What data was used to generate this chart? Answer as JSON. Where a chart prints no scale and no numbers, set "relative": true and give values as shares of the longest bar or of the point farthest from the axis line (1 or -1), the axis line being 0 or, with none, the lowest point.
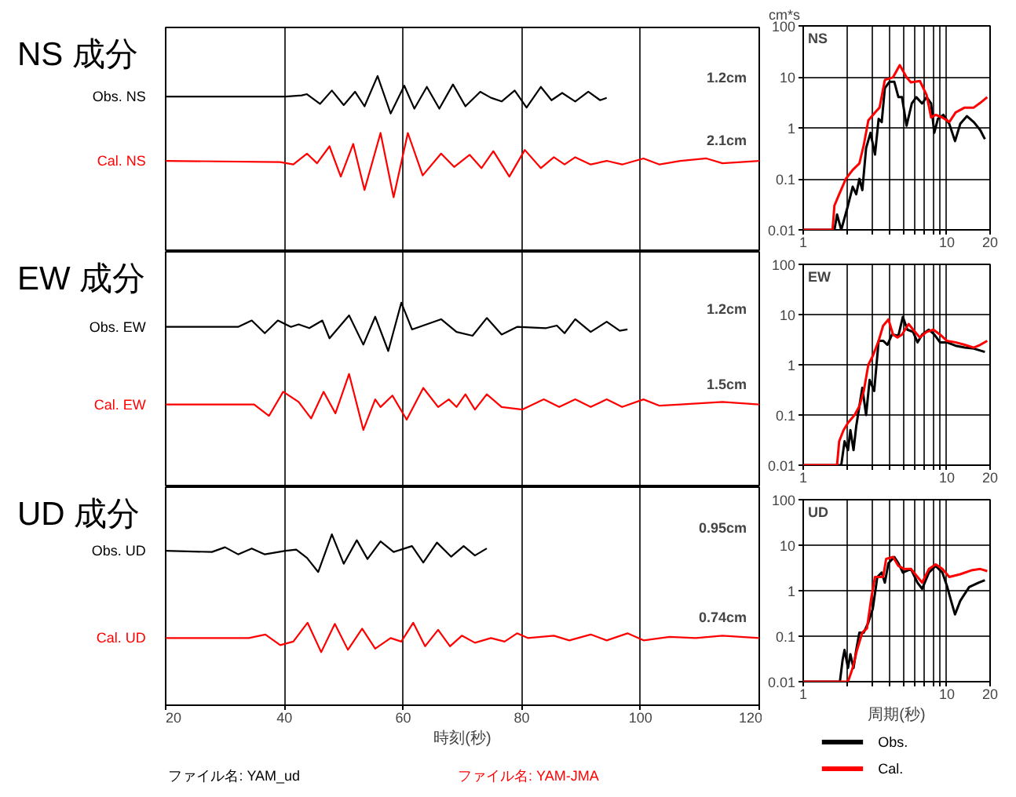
{
  "chart_data": [
    {
      "type": "line",
      "title": "NS 成分",
      "relative": true,
      "xlim": [
        20,
        120
      ],
      "xticks": [
        20,
        40,
        60,
        80,
        100,
        120
      ],
      "grid": "x",
      "tick_labels": false,
      "series": [
        {
          "name": "Obs. NS",
          "color": "#000000",
          "x": [
            20,
            31.3,
            40.2,
            42.9,
            43.8,
            46,
            48,
            50,
            51.9,
            53.5,
            55.7,
            57.9,
            60.2,
            61.9,
            64,
            66.1,
            68.4,
            70.5,
            73,
            74.8,
            76.6,
            78.8,
            80.8,
            83.2,
            85,
            86.8,
            89,
            91.2,
            93.2,
            94.3
          ],
          "values": [
            0.83,
            0.83,
            0.83,
            0.84,
            0.85,
            0.77,
            0.88,
            0.76,
            0.87,
            0.75,
            1,
            0.69,
            0.92,
            0.73,
            0.91,
            0.73,
            0.93,
            0.75,
            0.87,
            0.82,
            0.79,
            0.88,
            0.74,
            0.91,
            0.8,
            0.86,
            0.79,
            0.87,
            0.8,
            0.82
          ]
        },
        {
          "name": "Cal. NS",
          "color": "#ff0000",
          "x": [
            20,
            39.3,
            41.5,
            43.8,
            45.5,
            47.6,
            49.5,
            51.6,
            53.5,
            56.2,
            58.4,
            60.8,
            63.3,
            66.4,
            68.6,
            71.2,
            73.2,
            75.2,
            77.9,
            80.5,
            83.2,
            85.4,
            87.2,
            89,
            91.6,
            94.3,
            96.9,
            100.5,
            103.2,
            106.7,
            111.1,
            113.8,
            120
          ],
          "values": [
            0.3,
            0.29,
            0.27,
            0.36,
            0.28,
            0.42,
            0.17,
            0.44,
            0.06,
            0.53,
            0,
            0.53,
            0.18,
            0.36,
            0.25,
            0.35,
            0.24,
            0.38,
            0.17,
            0.39,
            0.24,
            0.33,
            0.27,
            0.33,
            0.27,
            0.3,
            0.27,
            0.32,
            0.27,
            0.3,
            0.32,
            0.28,
            0.3
          ]
        }
      ],
      "annotations": [
        "1.2cm",
        "2.1cm"
      ]
    },
    {
      "type": "line",
      "title": "EW 成分",
      "relative": true,
      "xlim": [
        20,
        120
      ],
      "xticks": [
        20,
        40,
        60,
        80,
        100,
        120
      ],
      "grid": "x",
      "tick_labels": false,
      "series": [
        {
          "name": "Obs. EW",
          "color": "#000000",
          "x": [
            20,
            32.2,
            34.5,
            36.7,
            38.9,
            41.1,
            42.4,
            44.2,
            46.4,
            47.6,
            50.9,
            53.3,
            55.3,
            57.5,
            59.7,
            61.5,
            66.4,
            69,
            71.7,
            74.1,
            76.6,
            79.2,
            84.1,
            85.9,
            87.2,
            89,
            91.6,
            94.3,
            96.5,
            97.8
          ],
          "values": [
            0.81,
            0.81,
            0.86,
            0.76,
            0.86,
            0.81,
            0.83,
            0.8,
            0.86,
            0.72,
            0.9,
            0.67,
            0.89,
            0.62,
            1,
            0.79,
            0.87,
            0.77,
            0.74,
            0.88,
            0.75,
            0.81,
            0.8,
            0.82,
            0.76,
            0.87,
            0.77,
            0.85,
            0.78,
            0.79
          ]
        },
        {
          "name": "Cal. EW",
          "color": "#ff0000",
          "x": [
            20,
            34.9,
            37.4,
            39.8,
            42.4,
            44.5,
            46.6,
            48.6,
            50.9,
            53.3,
            55.3,
            56.2,
            58.2,
            60.6,
            63.4,
            65.9,
            67.7,
            69,
            70.5,
            72.1,
            74.1,
            76.6,
            80.1,
            83.7,
            86.3,
            89,
            91.6,
            94.3,
            96.9,
            100.5,
            103.2,
            106.7,
            113.8,
            120
          ],
          "values": [
            0.2,
            0.2,
            0.11,
            0.3,
            0.22,
            0.09,
            0.3,
            0.13,
            0.44,
            0,
            0.24,
            0.18,
            0.27,
            0.08,
            0.33,
            0.18,
            0.24,
            0.18,
            0.28,
            0.16,
            0.28,
            0.18,
            0.16,
            0.24,
            0.18,
            0.24,
            0.18,
            0.24,
            0.18,
            0.24,
            0.19,
            0.2,
            0.22,
            0.2
          ]
        }
      ],
      "annotations": [
        "1.2cm",
        "1.5cm"
      ]
    },
    {
      "type": "line",
      "title": "UD 成分",
      "relative": true,
      "xlim": [
        20,
        120
      ],
      "xticks": [
        20,
        40,
        60,
        80,
        100,
        120
      ],
      "grid": "x",
      "tick_labels": "x",
      "xlabel": "時刻(秒)",
      "series": [
        {
          "name": "Obs. UD",
          "color": "#000000",
          "x": [
            20,
            27.8,
            30,
            32.2,
            34.5,
            36.7,
            40.2,
            42,
            43.8,
            45.7,
            48,
            50,
            52.2,
            54,
            56.2,
            58.4,
            61.5,
            63.4,
            65.7,
            68.1,
            70.2,
            72.1,
            74.1
          ],
          "values": [
            0.86,
            0.85,
            0.89,
            0.83,
            0.88,
            0.83,
            0.86,
            0.87,
            0.8,
            0.68,
            1,
            0.75,
            0.95,
            0.79,
            0.94,
            0.85,
            0.9,
            0.76,
            0.93,
            0.81,
            0.9,
            0.82,
            0.88
          ]
        },
        {
          "name": "Cal. UD",
          "color": "#ff0000",
          "x": [
            20,
            34,
            36.8,
            39.3,
            41.5,
            43.9,
            46.2,
            48.5,
            50.7,
            53.1,
            55.3,
            57.9,
            59.7,
            61.7,
            63.7,
            65.9,
            67.9,
            69.9,
            72.1,
            74.8,
            77.1,
            79.2,
            81,
            85.4,
            88,
            91.6,
            94.3,
            97.8,
            100.5,
            104.9,
            109.3,
            113.8,
            120
          ],
          "values": [
            0.12,
            0.12,
            0.15,
            0.06,
            0.09,
            0.25,
            0,
            0.24,
            0.02,
            0.2,
            0.03,
            0.12,
            0.09,
            0.25,
            0.05,
            0.19,
            0.05,
            0.14,
            0.08,
            0.12,
            0.09,
            0.16,
            0.12,
            0.14,
            0.1,
            0.15,
            0.1,
            0.16,
            0.1,
            0.13,
            0.12,
            0.14,
            0.12
          ]
        }
      ],
      "annotations": [
        "0.95cm",
        "0.74cm",
        "ファイル名:  YAM_ud",
        "ファイル名:  YAM-JMA"
      ]
    },
    {
      "type": "line",
      "title": "NS",
      "ylabel": "cm*s",
      "log": "xy",
      "xlim": [
        1,
        20
      ],
      "ylim": [
        0.01,
        100
      ],
      "grid": true,
      "xticks": [
        1,
        {
          "value": 2,
          "label": null
        },
        {
          "value": 3,
          "label": null
        },
        {
          "value": 4,
          "label": null
        },
        {
          "value": 5,
          "label": null
        },
        {
          "value": 6,
          "label": null
        },
        {
          "value": 7,
          "label": null
        },
        {
          "value": 8,
          "label": null
        },
        {
          "value": 9,
          "label": null
        },
        10,
        20
      ],
      "yticks": [
        0.01,
        0.1,
        1,
        10,
        100
      ],
      "series": [
        {
          "color": "#000000",
          "x": [
            1,
            1.65,
            1.72,
            1.84,
            2.05,
            2.21,
            2.34,
            2.46,
            2.58,
            2.74,
            2.94,
            3.16,
            3.35,
            3.52,
            3.7,
            3.98,
            4.31,
            4.6,
            4.87,
            5.24,
            5.7,
            6.13,
            6.73,
            7.23,
            7.77,
            8.17,
            8.66,
            9.45,
            10.4,
            11.4,
            12.4,
            13.8,
            15.4,
            17.1,
            18.4
          ],
          "values": [
            0.01,
            0.01,
            0.02,
            0.01,
            0.03,
            0.07,
            0.05,
            0.1,
            0.06,
            0.4,
            0.8,
            0.3,
            1.5,
            1.3,
            6,
            8,
            8,
            4,
            4,
            1.1,
            3,
            4,
            3,
            4,
            3,
            0.8,
            1.5,
            1.8,
            1.2,
            0.55,
            1.2,
            1.7,
            1.3,
            0.9,
            0.6
          ]
        },
        {
          "color": "#ff0000",
          "x": [
            1,
            1.6,
            1.65,
            1.78,
            1.98,
            2.21,
            2.46,
            2.64,
            2.84,
            3.16,
            3.4,
            3.7,
            4.22,
            4.7,
            5.24,
            5.62,
            6.49,
            7.23,
            7.77,
            8.36,
            9.31,
            10.4,
            11.5,
            13.3,
            15.4,
            17.1,
            19.1
          ],
          "values": [
            0.01,
            0.01,
            0.03,
            0.05,
            0.1,
            0.15,
            0.2,
            0.46,
            1.4,
            2,
            2.5,
            8.7,
            9.8,
            17,
            9.8,
            7.8,
            8.3,
            4.4,
            1.6,
            1.8,
            1.6,
            1.3,
            2,
            2.5,
            2.5,
            3.1,
            4
          ]
        }
      ]
    },
    {
      "type": "line",
      "title": "EW",
      "log": "xy",
      "xlim": [
        1,
        20
      ],
      "ylim": [
        0.01,
        100
      ],
      "grid": true,
      "xticks": [
        1,
        {
          "value": 2,
          "label": null
        },
        {
          "value": 3,
          "label": null
        },
        {
          "value": 4,
          "label": null
        },
        {
          "value": 5,
          "label": null
        },
        {
          "value": 6,
          "label": null
        },
        {
          "value": 7,
          "label": null
        },
        {
          "value": 8,
          "label": null
        },
        {
          "value": 9,
          "label": null
        },
        10,
        20
      ],
      "yticks": [
        0.01,
        0.1,
        1,
        10,
        100
      ],
      "series": [
        {
          "color": "#000000",
          "x": [
            1,
            1.84,
            1.94,
            2.05,
            2.13,
            2.24,
            2.34,
            2.46,
            2.58,
            2.74,
            2.9,
            3.12,
            3.35,
            3.6,
            3.86,
            4.15,
            4.6,
            4.94,
            5.31,
            5.82,
            6.25,
            6.73,
            7.5,
            8.17,
            8.96,
            10,
            11.5,
            13.3,
            15.4,
            18.4
          ],
          "values": [
            0.01,
            0.01,
            0.03,
            0.02,
            0.05,
            0.02,
            0.06,
            0.15,
            0.35,
            0.1,
            0.5,
            0.3,
            3,
            3,
            2.5,
            4,
            3.8,
            9,
            5,
            4.5,
            2.8,
            4,
            5,
            4,
            2.8,
            2.8,
            2.4,
            2.2,
            2.1,
            1.8
          ]
        },
        {
          "color": "#ff0000",
          "x": [
            1,
            1.72,
            1.78,
            1.91,
            2.05,
            2.28,
            2.46,
            2.64,
            2.84,
            3.05,
            3.35,
            3.6,
            3.92,
            4.22,
            4.53,
            4.87,
            5.42,
            5.82,
            6.49,
            7.23,
            8.06,
            8.96,
            10,
            11.5,
            13.3,
            15.4,
            17.1,
            19.1
          ],
          "values": [
            0.01,
            0.01,
            0.03,
            0.05,
            0.07,
            0.1,
            0.15,
            0.3,
            1,
            1.5,
            3,
            6,
            8,
            4,
            3.5,
            4,
            6.5,
            5,
            3.5,
            4.5,
            5,
            4,
            3,
            2.8,
            2.5,
            2.2,
            2.5,
            3
          ]
        }
      ]
    },
    {
      "type": "line",
      "title": "UD",
      "xlabel": "周期(秒)",
      "log": "xy",
      "xlim": [
        1,
        20
      ],
      "ylim": [
        0.01,
        100
      ],
      "grid": true,
      "legend": "bottom",
      "xticks": [
        1,
        {
          "value": 2,
          "label": null
        },
        {
          "value": 3,
          "label": null
        },
        {
          "value": 4,
          "label": null
        },
        {
          "value": 5,
          "label": null
        },
        {
          "value": 6,
          "label": null
        },
        {
          "value": 7,
          "label": null
        },
        {
          "value": 8,
          "label": null
        },
        {
          "value": 9,
          "label": null
        },
        10,
        20
      ],
      "yticks": [
        0.01,
        0.1,
        1,
        10,
        100
      ],
      "series": [
        {
          "name": "Obs.",
          "color": "#000000",
          "x": [
            1,
            1.8,
            1.88,
            1.94,
            2.05,
            2.13,
            2.24,
            2.34,
            2.46,
            2.64,
            2.84,
            3.05,
            3.28,
            3.52,
            3.7,
            3.92,
            4.31,
            4.6,
            4.94,
            5.62,
            6.25,
            6.73,
            7.5,
            8.36,
            9.31,
            10,
            10.7,
            11.4,
            12.4,
            14.3,
            16.6,
            18.4
          ],
          "values": [
            0.01,
            0.01,
            0.03,
            0.05,
            0.02,
            0.04,
            0.02,
            0.05,
            0.12,
            0.12,
            0.2,
            0.4,
            2,
            2.5,
            1.5,
            4,
            5.5,
            4,
            2.5,
            3,
            1.5,
            1.1,
            2.5,
            3.5,
            2.5,
            1.3,
            0.6,
            0.3,
            0.6,
            1.2,
            1.5,
            1.7
          ]
        },
        {
          "name": "Cal.",
          "color": "#ff0000",
          "x": [
            1,
            2.05,
            2.21,
            2.37,
            2.58,
            2.78,
            2.98,
            3.16,
            3.35,
            3.6,
            3.78,
            4.22,
            4.6,
            5.05,
            5.62,
            6.25,
            6.73,
            7.5,
            8.36,
            9.31,
            10.4,
            12.4,
            14.8,
            17.1,
            19.1
          ],
          "values": [
            0.01,
            0.01,
            0.02,
            0.05,
            0.12,
            0.15,
            0.7,
            2,
            2,
            2,
            5,
            5.5,
            3.5,
            3,
            3,
            2,
            1.5,
            3,
            3.8,
            3,
            2,
            2.3,
            2.8,
            3,
            2.7
          ]
        }
      ]
    }
  ]
}
